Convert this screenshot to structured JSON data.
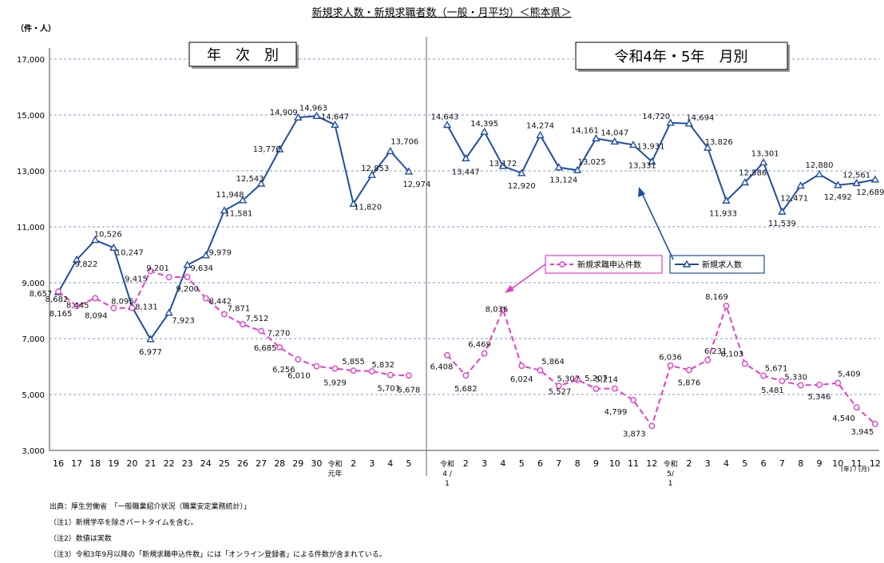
{
  "chart_data": {
    "type": "line",
    "title": "新規求人数・新規求職者数（一般・月平均）＜熊本県＞",
    "unit_label": "（件・人）",
    "ylim": [
      3000,
      17000
    ],
    "y_ticks": [
      "3,000",
      "5,000",
      "7,000",
      "9,000",
      "11,000",
      "13,000",
      "15,000",
      "17,000"
    ],
    "grid": true,
    "legend_position": "center",
    "axis_unit_label": "(年) / (月)",
    "panels": [
      {
        "title": "年　次　別",
        "x_labels": [
          "16",
          "17",
          "18",
          "19",
          "20",
          "21",
          "22",
          "23",
          "24",
          "25",
          "26",
          "27",
          "28",
          "29",
          "30",
          "令和\n元年",
          "2",
          "3",
          "4",
          "5"
        ],
        "series": [
          {
            "name": "新規求人数",
            "color": "#1f4ea0",
            "style": "solid",
            "marker": "triangle",
            "values": [
              8657,
              9822,
              10526,
              10247,
              8131,
              6977,
              7923,
              9634,
              9979,
              11581,
              11948,
              12543,
              13770,
              14909,
              14963,
              14647,
              11820,
              12853,
              13706,
              12974
            ],
            "labels": [
              "8,657",
              "9,822",
              "10,526",
              "10,247",
              "8,131",
              "6,977",
              "7,923",
              "9,634",
              "9,979",
              "11,581",
              "11,948",
              "12,543",
              "13,770",
              "14,909",
              "14,963",
              "14,647",
              "11,820",
              "12,853",
              "13,706",
              "12,974"
            ]
          },
          {
            "name": "新規求職申込件数",
            "color": "#e23fc6",
            "style": "dashed",
            "marker": "circle",
            "values": [
              8682,
              8165,
              8445,
              8094,
              8095,
              9415,
              9201,
              9200,
              8442,
              7871,
              7512,
              7270,
              6685,
              6256,
              6010,
              5929,
              5855,
              5832,
              5701,
              5678
            ],
            "labels": [
              "8,682",
              "8,165",
              "8,445",
              "8,094",
              "8,095",
              "9,415",
              "9,201",
              "9,200",
              "8,442",
              "7,871",
              "7,512",
              "7,270",
              "6,685",
              "6,256",
              "6,010",
              "5,929",
              "5,855",
              "5,832",
              "5,701",
              "5,678"
            ]
          }
        ]
      },
      {
        "title": "令和4年・5年　月別",
        "x_labels": [
          "令和\n4 /\n1",
          "2",
          "3",
          "4",
          "5",
          "6",
          "7",
          "8",
          "9",
          "10",
          "11",
          "12",
          "令和\n5/\n1",
          "2",
          "3",
          "4",
          "5",
          "6",
          "7",
          "8",
          "9",
          "10",
          "11",
          "12"
        ],
        "series": [
          {
            "name": "新規求人数",
            "color": "#1f4ea0",
            "style": "solid",
            "marker": "triangle",
            "values": [
              14643,
              13447,
              14395,
              13172,
              12920,
              14274,
              13124,
              13025,
              14161,
              14047,
              13931,
              13331,
              14720,
              14694,
              13826,
              11933,
              12586,
              13301,
              11539,
              12471,
              12880,
              12492,
              12561,
              12689
            ],
            "labels": [
              "14,643",
              "13,447",
              "14,395",
              "13,172",
              "12,920",
              "14,274",
              "13,124",
              "13,025",
              "14,161",
              "14,047",
              "13,931",
              "13,331",
              "14,720",
              "14,694",
              "13,826",
              "11,933",
              "12,586",
              "13,301",
              "11,539",
              "12,471",
              "12,880",
              "12,492",
              "12,561",
              "12,689"
            ]
          },
          {
            "name": "新規求職申込件数",
            "color": "#e23fc6",
            "style": "dashed",
            "marker": "circle",
            "values": [
              6408,
              5682,
              6469,
              8036,
              6024,
              5864,
              5307,
              5527,
              5207,
              5214,
              4799,
              3873,
              6036,
              5876,
              6231,
              8169,
              6103,
              5671,
              5481,
              5330,
              5346,
              5409,
              4540,
              3945
            ],
            "labels": [
              "6,408",
              "5,682",
              "6,469",
              "8,036",
              "6,024",
              "5,864",
              "5,307",
              "5,527",
              "5,207",
              "5,214",
              "4,799",
              "3,873",
              "6,036",
              "5,876",
              "6,231",
              "8,169",
              "6,103",
              "5,671",
              "5,481",
              "5,330",
              "5,346",
              "5,409",
              "4,540",
              "3,945"
            ]
          }
        ]
      }
    ],
    "legend": [
      {
        "name": "新規求職申込件数",
        "color": "#e23fc6",
        "style": "dashed",
        "marker": "circle"
      },
      {
        "name": "新規求人数",
        "color": "#1f4ea0",
        "style": "solid",
        "marker": "triangle"
      }
    ]
  },
  "notes": {
    "source": "出典：厚生労働省　「一般職業紹介状況（職業安定業務統計）」",
    "note1": "（注1）新規学卒を除きパートタイムを含む。",
    "note2": "（注2）数値は実数",
    "note3": "（注3）令和3年9月以降の「新規求職申込件数」には「オンライン登録者」による件数が含まれている。"
  }
}
